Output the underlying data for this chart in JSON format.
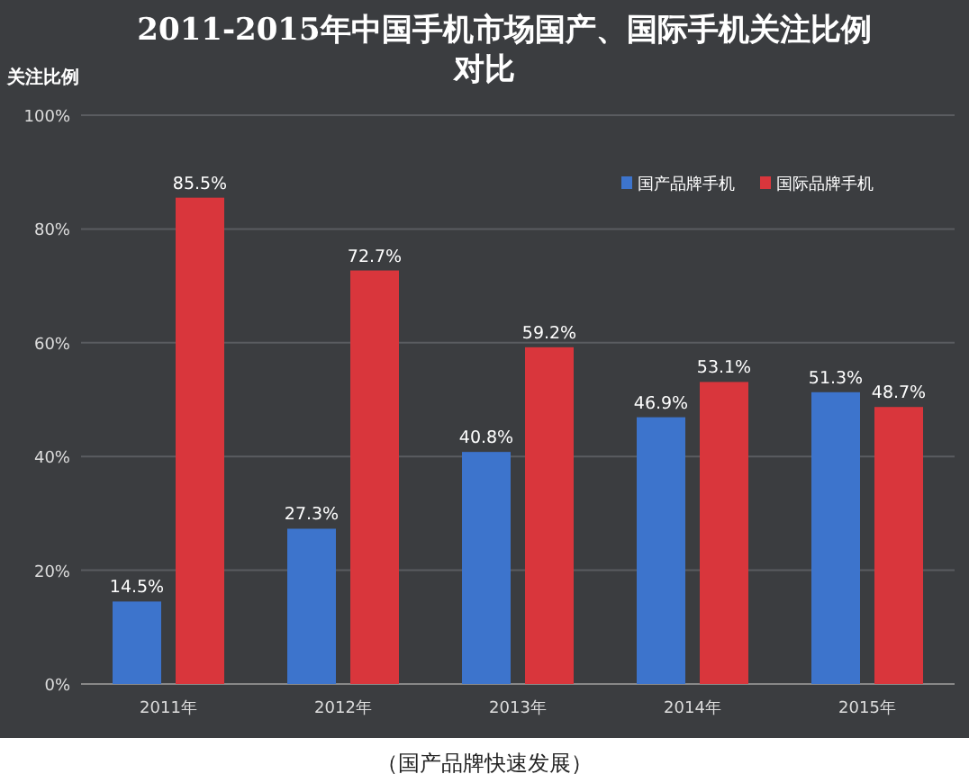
{
  "chart_data": {
    "type": "bar",
    "title": "2011-2015年中国手机市场国产、国际手机关注比例对比",
    "ylabel": "关注比例",
    "categories": [
      "2011年",
      "2012年",
      "2013年",
      "2014年",
      "2015年"
    ],
    "series": [
      {
        "name": "国产品牌手机",
        "color": "#3d74cc",
        "values": [
          14.5,
          27.3,
          40.8,
          46.9,
          51.3
        ],
        "value_labels": [
          "14.5%",
          "27.3%",
          "40.8%",
          "46.9%",
          "51.3%"
        ]
      },
      {
        "name": "国际品牌手机",
        "color": "#d9363c",
        "values": [
          85.5,
          72.7,
          59.2,
          53.1,
          48.7
        ],
        "value_labels": [
          "85.5%",
          "72.7%",
          "59.2%",
          "53.1%",
          "48.7%"
        ]
      }
    ],
    "ylim": [
      0,
      100
    ],
    "yticks": [
      {
        "value": 0,
        "label": "0%"
      },
      {
        "value": 20,
        "label": "20%"
      },
      {
        "value": 40,
        "label": "40%"
      },
      {
        "value": 60,
        "label": "60%"
      },
      {
        "value": 80,
        "label": "80%"
      },
      {
        "value": 100,
        "label": "100%"
      }
    ],
    "grid": "y",
    "legend": "top right",
    "annotations": [
      "（国产品牌快速发展）"
    ]
  }
}
